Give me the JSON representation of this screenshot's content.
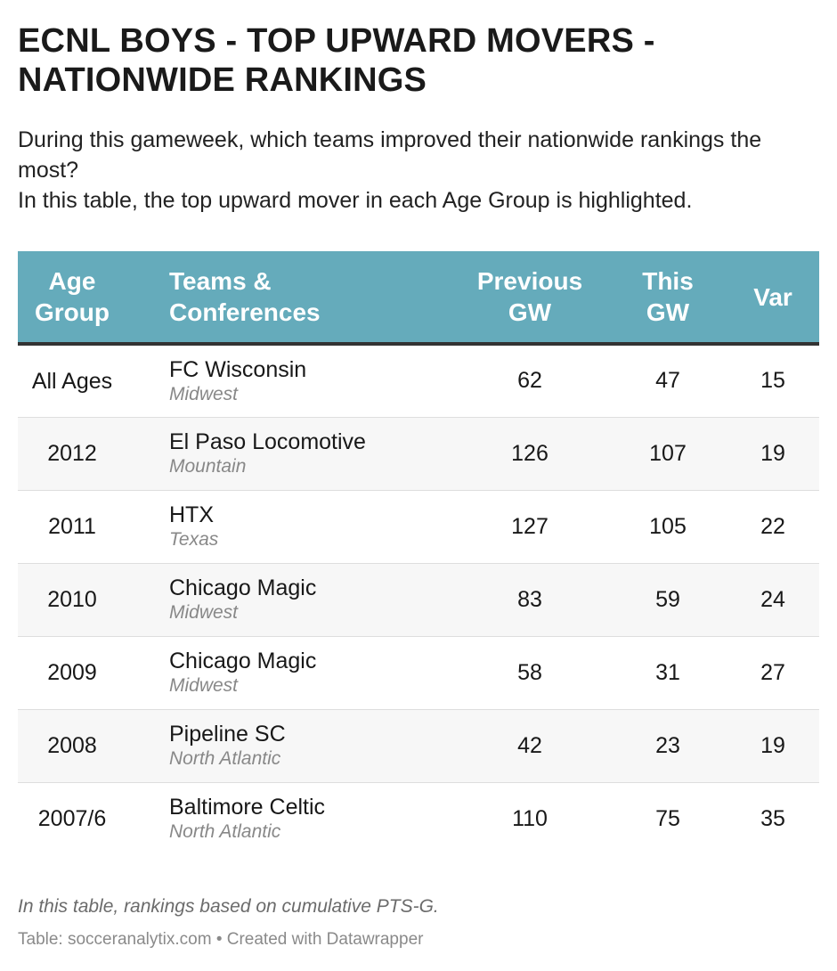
{
  "title": "ECNL BOYS - TOP UPWARD MOVERS - NATIONWIDE RANKINGS",
  "subtitle": {
    "line1": "During this gameweek, which teams improved their nationwide rankings the most?",
    "line2": "In this table, the top upward mover in each Age Group is highlighted."
  },
  "chart_data": {
    "type": "table",
    "columns": [
      "Age Group",
      "Teams & Conferences",
      "Previous GW",
      "This GW",
      "Var"
    ],
    "header_lines": {
      "age": [
        "Age",
        "Group"
      ],
      "team": [
        "Teams &",
        "Conferences"
      ],
      "prev": [
        "Previous",
        "GW"
      ],
      "this": [
        "This",
        "GW"
      ],
      "var": [
        "Var"
      ]
    },
    "rows": [
      {
        "age": "All Ages",
        "team": "FC Wisconsin",
        "conference": "Midwest",
        "previous": "62",
        "this": "47",
        "var": "15"
      },
      {
        "age": "2012",
        "team": "El Paso Locomotive",
        "conference": "Mountain",
        "previous": "126",
        "this": "107",
        "var": "19"
      },
      {
        "age": "2011",
        "team": "HTX",
        "conference": "Texas",
        "previous": "127",
        "this": "105",
        "var": "22"
      },
      {
        "age": "2010",
        "team": "Chicago Magic",
        "conference": "Midwest",
        "previous": "83",
        "this": "59",
        "var": "24"
      },
      {
        "age": "2009",
        "team": "Chicago Magic",
        "conference": "Midwest",
        "previous": "58",
        "this": "31",
        "var": "27"
      },
      {
        "age": "2008",
        "team": "Pipeline SC",
        "conference": "North Atlantic",
        "previous": "42",
        "this": "23",
        "var": "19"
      },
      {
        "age": "2007/6",
        "team": "Baltimore Celtic",
        "conference": "North Atlantic",
        "previous": "110",
        "this": "75",
        "var": "35"
      }
    ]
  },
  "note": "In this table, rankings based on cumulative PTS-G.",
  "source": "Table: socceranalytix.com • Created with Datawrapper",
  "colors": {
    "header_bg": "#65abbb",
    "header_text": "#ffffff",
    "stripe": "#f7f7f7",
    "conference_text": "#888888"
  }
}
